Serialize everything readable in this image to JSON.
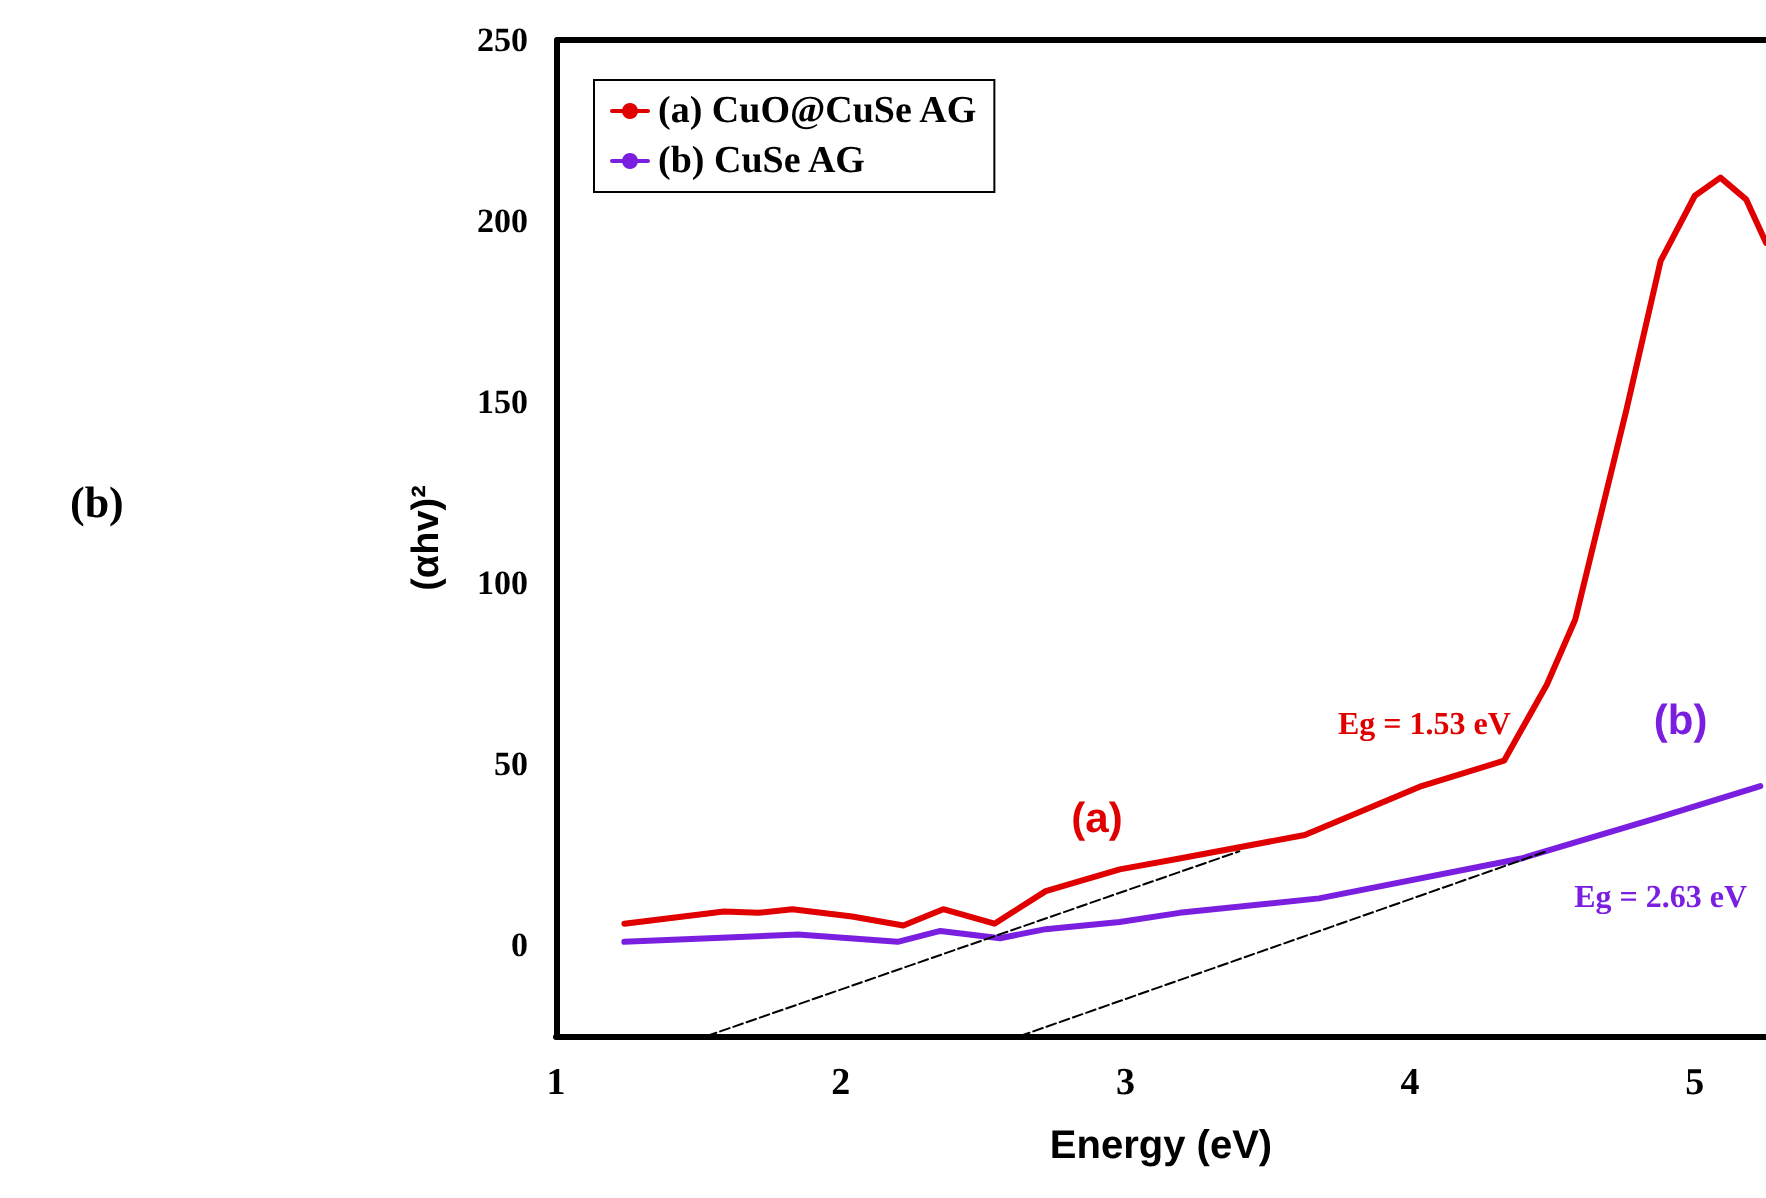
{
  "chart_data": {
    "type": "line",
    "xlabel": "Energy (eV)",
    "ylabel": "(αhv)²",
    "xlim": [
      1,
      5.25
    ],
    "xticks": [
      1,
      2,
      3,
      4,
      5
    ],
    "ylim": [
      -25,
      250
    ],
    "yticks": [
      0,
      50,
      100,
      150,
      200,
      250
    ],
    "grid": false,
    "legend": "top left",
    "marker": "none",
    "series": [
      {
        "name": "(a) CuO@CuSe AG",
        "color": "#e00000",
        "x": [
          1.24,
          1.59,
          1.71,
          1.83,
          2.04,
          2.22,
          2.36,
          2.54,
          2.72,
          2.98,
          3.19,
          3.63,
          4.04,
          4.33,
          4.48,
          4.58,
          4.76,
          4.88,
          5.0,
          5.09,
          5.18,
          5.25
        ],
        "values": [
          6,
          9.4,
          9,
          10,
          8,
          5.5,
          10,
          6,
          15,
          21,
          24,
          30.5,
          44,
          51,
          72,
          90,
          148,
          189,
          207,
          212,
          206,
          194
        ]
      },
      {
        "name": "(b) CuSe AG",
        "color": "#7a1fe0",
        "x": [
          1.24,
          1.85,
          2.2,
          2.35,
          2.56,
          2.72,
          2.98,
          3.19,
          3.68,
          4.39,
          4.86,
          5.23
        ],
        "values": [
          1,
          3,
          1,
          4,
          2,
          4.5,
          6.5,
          9,
          13,
          24,
          35,
          44
        ]
      },
      {
        "type": "line",
        "color": "#000000",
        "line_style": "dashed",
        "x": [
          1.53,
          3.4
        ],
        "values": [
          -25,
          26
        ]
      },
      {
        "type": "line",
        "color": "#000000",
        "line_style": "dashed",
        "x": [
          2.63,
          4.48
        ],
        "values": [
          -25,
          26
        ]
      }
    ],
    "annotations": [
      "(b)",
      "(a)",
      "(b)",
      "Eg = 1.53 eV",
      "Eg = 2.63 eV"
    ]
  }
}
